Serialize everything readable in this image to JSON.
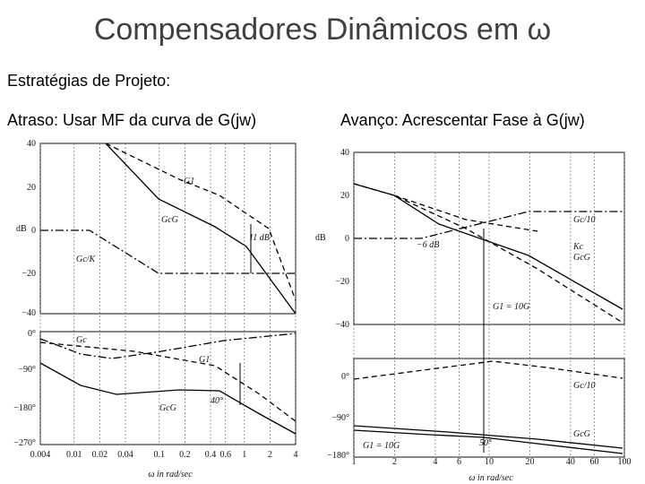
{
  "title": "Compensadores Dinâmicos em ω",
  "subtitle": "Estratégias de Projeto:",
  "left": {
    "heading": "Atraso: Usar MF da curva de G(jw)",
    "mag_unit": "dB",
    "mag_ticks": [
      "40",
      "20",
      "0",
      "−20",
      "−40"
    ],
    "phase_ticks": [
      "0°",
      "−90°",
      "−180°",
      "−270°"
    ],
    "freq_ticks": [
      "0.004",
      "0.01",
      "0.02",
      "0.04",
      "0.1",
      "0.2",
      "0.4",
      "0.6",
      "1",
      "2",
      "4"
    ],
    "freq_label": "ω in rad/sec",
    "annotations": [
      "G1",
      "GcG",
      "11 dB",
      "Gc/K",
      "Gc",
      "G1",
      "GcG",
      "40°"
    ]
  },
  "right": {
    "heading": "Avanço: Acrescentar Fase à G(jw)",
    "mag_unit": "dB",
    "mag_ticks": [
      "40",
      "20",
      "0",
      "−20",
      "−40"
    ],
    "phase_ticks": [
      "0°",
      "−90°",
      "−180°"
    ],
    "freq_ticks": [
      "1",
      "2",
      "4",
      "6",
      "10",
      "20",
      "40",
      "60",
      "100"
    ],
    "freq_label": "ω in rad/sec",
    "annotations": [
      "Gc/10",
      "Kc",
      "−6 dB",
      "GcG",
      "G1 = 10G",
      "Gc/10",
      "G1 = 10G",
      "GcG",
      "50°"
    ]
  }
}
